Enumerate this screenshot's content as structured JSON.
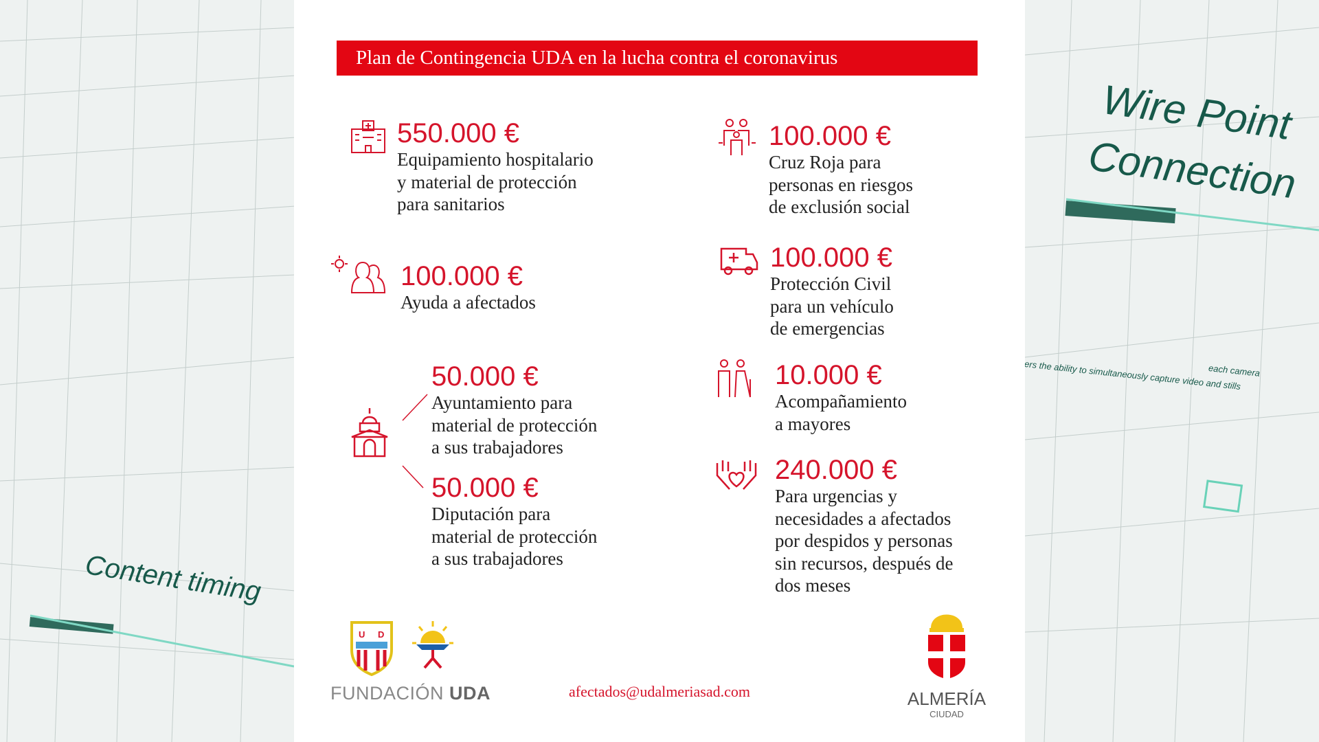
{
  "banner": {
    "title": "Plan de Contingencia UDA en la lucha contra el coronavirus"
  },
  "items": [
    {
      "amount": "550.000 €",
      "lines": [
        "Equipamiento hospitalario",
        "y material de protección",
        "para sanitarios"
      ],
      "icon": "hospital-icon"
    },
    {
      "amount": "100.000 €",
      "lines": [
        "Ayuda a afectados"
      ],
      "icon": "virus-people-icon"
    },
    {
      "amount": "50.000 €",
      "lines": [
        "Ayuntamiento para",
        "material de protección",
        "a sus trabajadores"
      ],
      "icon": "town-hall-icon"
    },
    {
      "amount": "50.000 €",
      "lines": [
        "Diputación para",
        "material de protección",
        "a sus trabajadores"
      ],
      "icon": "town-hall-icon"
    },
    {
      "amount": "100.000 €",
      "lines": [
        "Cruz Roja para",
        "personas en riesgos",
        "de exclusión social"
      ],
      "icon": "family-icon"
    },
    {
      "amount": "100.000 €",
      "lines": [
        "Protección Civil",
        "para un vehículo",
        "de emergencias"
      ],
      "icon": "ambulance-icon"
    },
    {
      "amount": "10.000 €",
      "lines": [
        "Acompañamiento",
        "a mayores"
      ],
      "icon": "elderly-couple-icon"
    },
    {
      "amount": "240.000 €",
      "lines": [
        "Para urgencias y",
        "necesidades a afectados",
        "por despidos y personas",
        "sin recursos, después de",
        "dos meses"
      ],
      "icon": "hands-heart-icon"
    }
  ],
  "footer": {
    "foundation_light": "FUNDACIÓN ",
    "foundation_bold": "UDA",
    "email": "afectados@udalmeriasad.com",
    "city": "ALMERÍA",
    "city_sub": "CIUDAD",
    "logo_text": "UD ALMERÍA"
  },
  "background": {
    "right_title_1": "Wire Point",
    "right_title_2": "Connection",
    "right_caption": "ers the ability to simultaneously capture video and stills",
    "right_caption_2": "each camera",
    "left_title": "Content timing"
  },
  "colors": {
    "accent": "#e30613",
    "amount": "#d5142b",
    "bg_text": "#17594a"
  }
}
